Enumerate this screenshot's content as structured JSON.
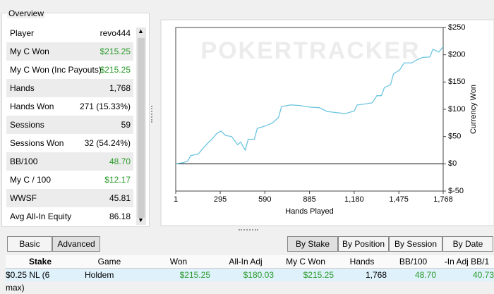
{
  "overview": {
    "title": "Overview",
    "rows": [
      {
        "label": "Player",
        "value": "revo444"
      },
      {
        "label": "My C Won",
        "value": "$215.25",
        "color": "#2a9a2a"
      },
      {
        "label": "My C Won (Inc Payouts)",
        "value": "$215.25",
        "color": "#2a9a2a"
      },
      {
        "label": "Hands",
        "value": "1,768"
      },
      {
        "label": "Hands Won",
        "value": "271 (15.33%)"
      },
      {
        "label": "Sessions",
        "value": "59"
      },
      {
        "label": "Sessions Won",
        "value": "32 (54.24%)"
      },
      {
        "label": "BB/100",
        "value": "48.70",
        "color": "#2a9a2a"
      },
      {
        "label": "My C / 100",
        "value": "$12.17",
        "color": "#2a9a2a"
      },
      {
        "label": "WWSF",
        "value": "45.81"
      },
      {
        "label": "Avg All-In Equity",
        "value": "86.18"
      }
    ]
  },
  "chart_data": {
    "type": "line",
    "watermark": "POKERTRACKER",
    "xlabel": "Hands Played",
    "ylabel": "Currency Won",
    "xlim": [
      1,
      1768
    ],
    "ylim": [
      -50,
      250
    ],
    "xticks": [
      1,
      295,
      590,
      885,
      {
        "value": 1180,
        "label": "1,180"
      },
      {
        "value": 1475,
        "label": "1,475"
      },
      {
        "value": 1768,
        "label": "1,768"
      }
    ],
    "yticks": [
      {
        "value": -50,
        "label": "$-50"
      },
      {
        "value": 0,
        "label": "$0"
      },
      {
        "value": 50,
        "label": "$50"
      },
      {
        "value": 100,
        "label": "$100"
      },
      {
        "value": 150,
        "label": "$150"
      },
      {
        "value": 200,
        "label": "$200"
      },
      {
        "value": 250,
        "label": "$250"
      }
    ],
    "series": [
      {
        "color": "#6cc5e0",
        "x": [
          1,
          50,
          80,
          100,
          150,
          180,
          220,
          240,
          270,
          300,
          330,
          370,
          410,
          430,
          460,
          480,
          520,
          540,
          600,
          640,
          680,
          700,
          760,
          820,
          885,
          950,
          1000,
          1060,
          1120,
          1180,
          1200,
          1260,
          1300,
          1330,
          1360,
          1380,
          1420,
          1440,
          1480,
          1510,
          1560,
          1590,
          1630,
          1680,
          1700,
          1740,
          1768
        ],
        "values": [
          0,
          2,
          5,
          15,
          18,
          28,
          40,
          45,
          55,
          60,
          52,
          50,
          35,
          40,
          25,
          45,
          45,
          65,
          70,
          75,
          85,
          105,
          108,
          107,
          104,
          103,
          96,
          94,
          92,
          97,
          108,
          110,
          112,
          125,
          125,
          140,
          145,
          165,
          172,
          185,
          185,
          190,
          195,
          196,
          210,
          205,
          215
        ]
      }
    ]
  },
  "tabs_left": [
    "Basic",
    "Advanced"
  ],
  "tabs_right": [
    "By Stake",
    "By Position",
    "By Session",
    "By Date"
  ],
  "table": {
    "header": [
      "Stake",
      "Game",
      "Won",
      "All-In Adj",
      "My C Won",
      "Hands",
      "BB/100",
      "-In Adj BB/1"
    ],
    "rows": [
      [
        "$0.25 NL (6 max)",
        "Holdem",
        "$215.25",
        "$180.03",
        "$215.25",
        "1,768",
        "48.70",
        "40.73"
      ]
    ]
  }
}
